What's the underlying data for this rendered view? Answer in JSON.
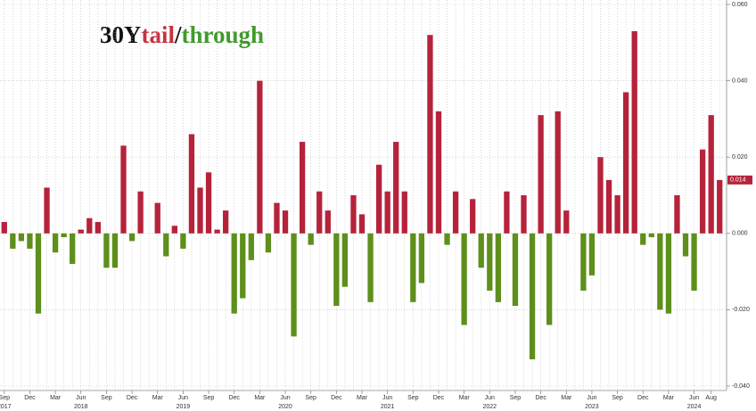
{
  "chart_data": {
    "type": "bar",
    "title_parts": [
      {
        "text": "30Y",
        "color": "#111111"
      },
      {
        "text": "tail",
        "color": "#c8323f"
      },
      {
        "text": "/",
        "color": "#111111"
      },
      {
        "text": "through",
        "color": "#3f9a2a"
      }
    ],
    "positive_color": "#b5233b",
    "negative_color": "#5e8f1c",
    "categories": [
      "Sep",
      null,
      null,
      "Dec",
      null,
      null,
      "Mar",
      null,
      null,
      "Jun",
      null,
      null,
      "Sep",
      null,
      null,
      "Dec",
      null,
      null,
      "Mar",
      null,
      null,
      "Jun",
      null,
      null,
      "Sep",
      null,
      null,
      "Dec",
      null,
      null,
      "Mar",
      null,
      null,
      "Jun",
      null,
      null,
      "Sep",
      null,
      null,
      "Dec",
      null,
      null,
      "Mar",
      null,
      null,
      "Jun",
      null,
      null,
      "Sep",
      null,
      null,
      "Dec",
      null,
      null,
      "Mar",
      null,
      null,
      "Jun",
      null,
      null,
      "Sep",
      null,
      null,
      "Dec",
      null,
      null,
      "Mar",
      null,
      null,
      "Jun",
      null,
      null,
      "Sep",
      null,
      null,
      "Dec",
      null,
      null,
      "Mar",
      null,
      null,
      "Jun",
      null,
      "Aug",
      null
    ],
    "year_labels": [
      "2017",
      null,
      null,
      null,
      null,
      null,
      null,
      null,
      null,
      "2018",
      null,
      null,
      null,
      null,
      null,
      null,
      null,
      null,
      null,
      null,
      null,
      "2019",
      null,
      null,
      null,
      null,
      null,
      null,
      null,
      null,
      null,
      null,
      null,
      "2020",
      null,
      null,
      null,
      null,
      null,
      null,
      null,
      null,
      null,
      null,
      null,
      "2021",
      null,
      null,
      null,
      null,
      null,
      null,
      null,
      null,
      null,
      null,
      null,
      "2022",
      null,
      null,
      null,
      null,
      null,
      null,
      null,
      null,
      null,
      null,
      null,
      "2023",
      null,
      null,
      null,
      null,
      null,
      null,
      null,
      null,
      null,
      null,
      null,
      "2024",
      null,
      null,
      null
    ],
    "values": [
      0.003,
      -0.004,
      -0.002,
      -0.004,
      -0.021,
      0.012,
      -0.005,
      -0.001,
      -0.008,
      0.001,
      0.004,
      0.003,
      -0.009,
      -0.009,
      0.023,
      -0.002,
      0.011,
      0.0,
      0.008,
      -0.006,
      0.002,
      -0.004,
      0.026,
      0.012,
      0.016,
      0.001,
      0.006,
      -0.021,
      -0.017,
      -0.007,
      0.04,
      -0.005,
      0.008,
      0.006,
      -0.027,
      0.024,
      -0.003,
      0.011,
      0.006,
      -0.019,
      -0.014,
      0.01,
      0.005,
      -0.018,
      0.018,
      0.011,
      0.024,
      0.011,
      -0.018,
      -0.013,
      0.052,
      0.032,
      -0.003,
      0.011,
      -0.024,
      0.009,
      -0.009,
      -0.015,
      -0.018,
      0.011,
      -0.019,
      0.01,
      -0.033,
      0.031,
      -0.024,
      0.032,
      0.006,
      0.0,
      -0.015,
      -0.011,
      0.02,
      0.014,
      0.01,
      0.037,
      0.053,
      -0.003,
      -0.001,
      -0.02,
      -0.021,
      0.01,
      -0.006,
      -0.015,
      0.022,
      0.031,
      0.014
    ],
    "last_value_label": "0.014",
    "ylim": [
      -0.04,
      0.06
    ],
    "yticks": [
      {
        "value": 0.06,
        "label": "0.060"
      },
      {
        "value": 0.04,
        "label": "0.040"
      },
      {
        "value": 0.02,
        "label": "0.020"
      },
      {
        "value": 0,
        "label": "0.000"
      },
      {
        "value": -0.02,
        "label": "-0.020"
      },
      {
        "value": -0.04,
        "label": "-0.040"
      }
    ],
    "grid": true
  }
}
